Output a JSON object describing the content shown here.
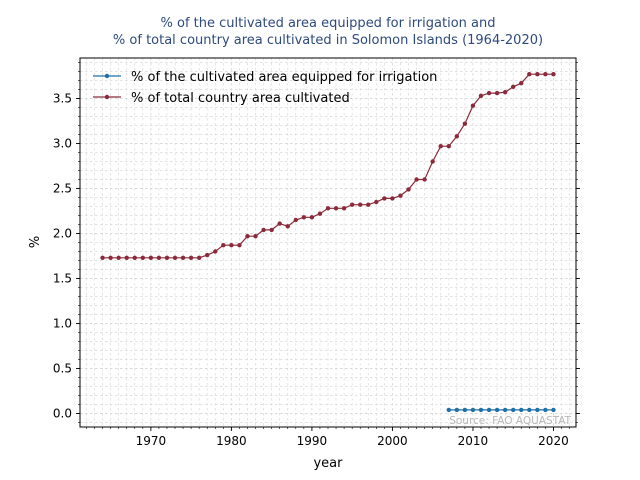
{
  "chart_data": {
    "type": "line",
    "title_lines": [
      "% of the cultivated area equipped for irrigation and",
      "% of total country area cultivated in Solomon Islands (1964-2020)"
    ],
    "xlabel": "year",
    "ylabel": "%",
    "xlim": [
      1961.2,
      2022.8
    ],
    "ylim": [
      -0.15,
      3.95
    ],
    "x_ticks": [
      1970,
      1980,
      1990,
      2000,
      2010,
      2020
    ],
    "y_ticks": [
      0.0,
      0.5,
      1.0,
      1.5,
      2.0,
      2.5,
      3.0,
      3.5
    ],
    "y_tick_labels": [
      "0.0",
      "0.5",
      "1.0",
      "1.5",
      "2.0",
      "2.5",
      "3.0",
      "3.5"
    ],
    "grid": true,
    "legend_position": "top-left",
    "source_text": "Source: FAO AQUASTAT",
    "series": [
      {
        "name": "% of the cultivated area equipped for irrigation",
        "color": "#1f6fa8",
        "x": [
          2007,
          2008,
          2009,
          2010,
          2011,
          2012,
          2013,
          2014,
          2015,
          2016,
          2017,
          2018,
          2019,
          2020
        ],
        "y": [
          0.04,
          0.04,
          0.04,
          0.04,
          0.04,
          0.04,
          0.04,
          0.04,
          0.04,
          0.04,
          0.04,
          0.04,
          0.04,
          0.04
        ]
      },
      {
        "name": "% of total country area cultivated",
        "color": "#8b2a3a",
        "x": [
          1964,
          1965,
          1966,
          1967,
          1968,
          1969,
          1970,
          1971,
          1972,
          1973,
          1974,
          1975,
          1976,
          1977,
          1978,
          1979,
          1980,
          1981,
          1982,
          1983,
          1984,
          1985,
          1986,
          1987,
          1988,
          1989,
          1990,
          1991,
          1992,
          1993,
          1994,
          1995,
          1996,
          1997,
          1998,
          1999,
          2000,
          2001,
          2002,
          2003,
          2004,
          2005,
          2006,
          2007,
          2008,
          2009,
          2010,
          2011,
          2012,
          2013,
          2014,
          2015,
          2016,
          2017,
          2018,
          2019,
          2020
        ],
        "y": [
          1.73,
          1.73,
          1.73,
          1.73,
          1.73,
          1.73,
          1.73,
          1.73,
          1.73,
          1.73,
          1.73,
          1.73,
          1.73,
          1.76,
          1.8,
          1.87,
          1.87,
          1.87,
          1.97,
          1.97,
          2.04,
          2.04,
          2.11,
          2.08,
          2.15,
          2.18,
          2.18,
          2.22,
          2.28,
          2.28,
          2.28,
          2.32,
          2.32,
          2.32,
          2.35,
          2.39,
          2.39,
          2.42,
          2.49,
          2.6,
          2.6,
          2.8,
          2.97,
          2.97,
          3.08,
          3.22,
          3.42,
          3.53,
          3.56,
          3.56,
          3.57,
          3.63,
          3.67,
          3.77,
          3.77,
          3.77,
          3.77
        ]
      }
    ]
  }
}
